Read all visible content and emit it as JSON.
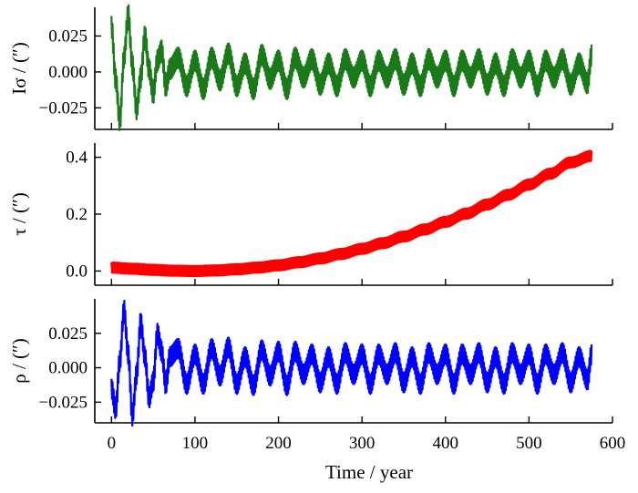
{
  "chart_data": [
    {
      "type": "line",
      "ylabel": "Iσ / (″)",
      "ylim": [
        -0.04,
        0.045
      ],
      "yticks": [
        -0.025,
        0.0,
        0.025
      ],
      "ytick_labels": [
        "−0.025",
        "0.000",
        "0.025"
      ],
      "xlim": [
        -20,
        600
      ],
      "grid": false,
      "series": [
        {
          "color": "#1a7a1a",
          "band": 0.007,
          "envelope": [
            [
              0,
              0.03
            ],
            [
              8,
              -0.032
            ],
            [
              16,
              0.036
            ],
            [
              24,
              -0.025
            ],
            [
              32,
              0.025
            ],
            [
              40,
              -0.016
            ],
            [
              50,
              0.016
            ],
            [
              60,
              -0.01
            ],
            [
              75,
              0.01
            ],
            [
              100,
              -0.012
            ],
            [
              130,
              0.012
            ],
            [
              160,
              -0.012
            ],
            [
              190,
              0.011
            ],
            [
              220,
              -0.012
            ],
            [
              260,
              0.01
            ],
            [
              300,
              -0.01
            ],
            [
              340,
              0.01
            ],
            [
              380,
              -0.01
            ],
            [
              420,
              0.01
            ],
            [
              460,
              -0.01
            ],
            [
              500,
              0.01
            ],
            [
              540,
              -0.01
            ],
            [
              575,
              0.01
            ]
          ],
          "x": [
            0,
            5,
            10,
            15,
            20,
            25,
            30,
            35,
            40,
            45,
            50,
            55,
            60,
            65,
            70,
            80,
            90,
            100,
            110,
            120,
            130,
            140,
            150,
            160,
            170,
            180,
            190,
            200,
            210,
            220,
            230,
            240,
            250,
            260,
            270,
            280,
            290,
            300,
            310,
            320,
            330,
            340,
            350,
            360,
            370,
            380,
            390,
            400,
            410,
            420,
            430,
            440,
            450,
            460,
            470,
            480,
            490,
            500,
            510,
            520,
            530,
            540,
            550,
            560,
            570,
            575
          ],
          "y": [
            0.032,
            -0.005,
            -0.034,
            0.01,
            0.04,
            0.005,
            -0.026,
            -0.004,
            0.025,
            0.002,
            -0.015,
            0.008,
            0.015,
            -0.01,
            0.002,
            0.01,
            -0.01,
            0.008,
            -0.012,
            0.01,
            -0.006,
            0.013,
            -0.01,
            0.006,
            -0.012,
            0.012,
            -0.005,
            0.008,
            -0.012,
            0.01,
            -0.004,
            0.009,
            -0.009,
            0.006,
            -0.01,
            0.009,
            -0.004,
            0.008,
            -0.01,
            0.008,
            -0.004,
            0.009,
            -0.009,
            0.006,
            -0.01,
            0.009,
            -0.004,
            0.008,
            -0.01,
            0.008,
            -0.004,
            0.009,
            -0.009,
            0.006,
            -0.01,
            0.009,
            -0.004,
            0.008,
            -0.01,
            0.008,
            -0.004,
            0.009,
            -0.009,
            0.006,
            -0.008,
            0.012
          ]
        }
      ]
    },
    {
      "type": "line",
      "ylabel": "τ / (″)",
      "ylim": [
        -0.05,
        0.45
      ],
      "yticks": [
        0.0,
        0.2,
        0.4
      ],
      "ytick_labels": [
        "0.0",
        "0.2",
        "0.4"
      ],
      "xlim": [
        -20,
        600
      ],
      "grid": false,
      "series": [
        {
          "color": "#ff0000",
          "band": 0.018,
          "x": [
            0,
            25,
            50,
            75,
            100,
            125,
            150,
            175,
            200,
            225,
            250,
            275,
            300,
            325,
            350,
            375,
            400,
            425,
            450,
            475,
            500,
            525,
            550,
            575
          ],
          "y": [
            0.012,
            0.008,
            0.004,
            0.001,
            0.0,
            0.002,
            0.006,
            0.012,
            0.02,
            0.031,
            0.044,
            0.06,
            0.078,
            0.098,
            0.121,
            0.146,
            0.173,
            0.202,
            0.234,
            0.268,
            0.304,
            0.342,
            0.382,
            0.405
          ]
        }
      ]
    },
    {
      "type": "line",
      "ylabel": "ρ / (″)",
      "ylim": [
        -0.04,
        0.05
      ],
      "yticks": [
        -0.025,
        0.0,
        0.025
      ],
      "ytick_labels": [
        "−0.025",
        "0.000",
        "0.025"
      ],
      "xlim": [
        -20,
        600
      ],
      "xlabel": "Time / year",
      "xticks": [
        0,
        100,
        200,
        300,
        400,
        500,
        600
      ],
      "xtick_labels": [
        "0",
        "100",
        "200",
        "300",
        "400",
        "500",
        "600"
      ],
      "grid": false,
      "series": [
        {
          "color": "#0000ff",
          "band": 0.007,
          "x": [
            0,
            5,
            10,
            15,
            20,
            25,
            30,
            35,
            40,
            45,
            50,
            55,
            60,
            65,
            70,
            80,
            90,
            100,
            110,
            120,
            130,
            140,
            150,
            160,
            170,
            180,
            190,
            200,
            210,
            220,
            230,
            240,
            250,
            260,
            270,
            280,
            290,
            300,
            310,
            320,
            330,
            340,
            350,
            360,
            370,
            380,
            390,
            400,
            410,
            420,
            430,
            440,
            450,
            460,
            470,
            480,
            490,
            500,
            510,
            520,
            530,
            540,
            550,
            560,
            570,
            575
          ],
          "y": [
            -0.015,
            -0.03,
            0.005,
            0.042,
            0.01,
            -0.035,
            -0.005,
            0.033,
            0.008,
            -0.022,
            -0.01,
            0.025,
            0.012,
            -0.012,
            0.008,
            0.014,
            -0.012,
            0.01,
            -0.012,
            0.014,
            -0.006,
            0.015,
            -0.012,
            0.008,
            -0.013,
            0.013,
            -0.006,
            0.012,
            -0.013,
            0.012,
            -0.005,
            0.01,
            -0.011,
            0.008,
            -0.012,
            0.011,
            -0.005,
            0.01,
            -0.012,
            0.01,
            -0.005,
            0.011,
            -0.011,
            0.008,
            -0.012,
            0.011,
            -0.005,
            0.01,
            -0.012,
            0.01,
            -0.005,
            0.011,
            -0.011,
            0.008,
            -0.012,
            0.011,
            -0.005,
            0.01,
            -0.012,
            0.01,
            -0.005,
            0.011,
            -0.011,
            0.008,
            -0.009,
            0.01
          ]
        }
      ]
    }
  ]
}
